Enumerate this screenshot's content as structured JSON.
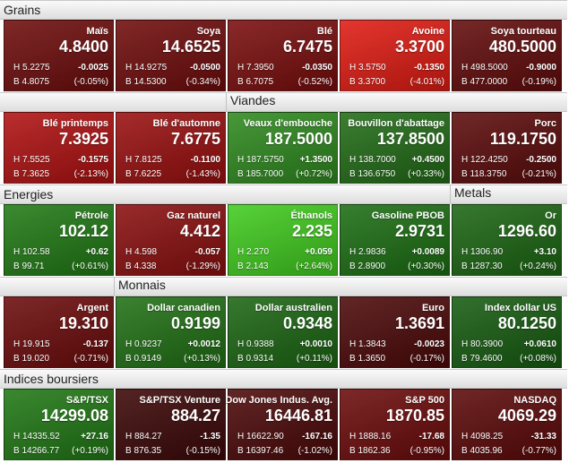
{
  "rows": [
    {
      "headers": [
        {
          "label": "Grains",
          "col": 0
        }
      ],
      "tiles": [
        {
          "name": "Maïs",
          "price": "4.8400",
          "high": "H 5.2275",
          "low": "B 4.8075",
          "change": "-0.0025",
          "pct": "(-0.05%)",
          "color": "#6e0b0b"
        },
        {
          "name": "Soya",
          "price": "14.6525",
          "high": "H 14.9275",
          "low": "B 14.5300",
          "change": "-0.0500",
          "pct": "(-0.34%)",
          "color": "#700b0b"
        },
        {
          "name": "Blé",
          "price": "6.7475",
          "high": "H 7.3950",
          "low": "B 6.7075",
          "change": "-0.0350",
          "pct": "(-0.52%)",
          "color": "#7a0c0c"
        },
        {
          "name": "Avoine",
          "price": "3.3700",
          "high": "H 3.5750",
          "low": "B 3.3700",
          "change": "-0.1350",
          "pct": "(-4.01%)",
          "color": "#e01b12"
        },
        {
          "name": "Soya tourteau",
          "price": "480.5000",
          "high": "H 498.5000",
          "low": "B 477.0000",
          "change": "-0.9000",
          "pct": "(-0.19%)",
          "color": "#620a0a"
        }
      ]
    },
    {
      "headers": [
        {
          "label": "Viandes",
          "col": 2
        }
      ],
      "tiles": [
        {
          "name": "Blé printemps",
          "price": "7.3925",
          "high": "H 7.5525",
          "low": "B 7.3625",
          "change": "-0.1575",
          "pct": "(-2.13%)",
          "color": "#b01010"
        },
        {
          "name": "Blé d'automne",
          "price": "7.6775",
          "high": "H 7.8125",
          "low": "B 7.6225",
          "change": "-0.1100",
          "pct": "(-1.43%)",
          "color": "#9a0e0e"
        },
        {
          "name": "Veaux d'embouche",
          "price": "187.5000",
          "high": "H 187.5750",
          "low": "B 185.7000",
          "change": "+1.3500",
          "pct": "(+0.72%)",
          "color": "#2e8a1e"
        },
        {
          "name": "Bouvillon d'abattage",
          "price": "137.8500",
          "high": "H 138.7000",
          "low": "B 136.6750",
          "change": "+0.4500",
          "pct": "(+0.33%)",
          "color": "#216c16"
        },
        {
          "name": "Porc",
          "price": "119.1750",
          "high": "H 122.4250",
          "low": "B 118.3750",
          "change": "-0.2500",
          "pct": "(-0.21%)",
          "color": "#5c0a0a"
        }
      ]
    },
    {
      "headers": [
        {
          "label": "Energies",
          "col": 0
        },
        {
          "label": "Metals",
          "col": 4
        }
      ],
      "tiles": [
        {
          "name": "Pétrole",
          "price": "102.12",
          "high": "H 102.58",
          "low": "B 99.71",
          "change": "+0.62",
          "pct": "(+0.61%)",
          "color": "#207a14"
        },
        {
          "name": "Gaz naturel",
          "price": "4.412",
          "high": "H 4.598",
          "low": "B 4.338",
          "change": "-0.057",
          "pct": "(-1.29%)",
          "color": "#8a0e0e"
        },
        {
          "name": "Éthanols",
          "price": "2.235",
          "high": "H 2.270",
          "low": "B 2.143",
          "change": "+0.059",
          "pct": "(+2.64%)",
          "color": "#40cc1e"
        },
        {
          "name": "Gasoline PBOB",
          "price": "2.9731",
          "high": "H 2.9836",
          "low": "B 2.8900",
          "change": "+0.0089",
          "pct": "(+0.30%)",
          "color": "#1b6e12"
        },
        {
          "name": "Or",
          "price": "1296.60",
          "high": "H 1306.90",
          "low": "B 1287.30",
          "change": "+3.10",
          "pct": "(+0.24%)",
          "color": "#1b6612"
        }
      ]
    },
    {
      "headers": [
        {
          "label": "Monnais",
          "col": 1
        }
      ],
      "tiles": [
        {
          "name": "Argent",
          "price": "19.310",
          "high": "H 19.915",
          "low": "B 19.020",
          "change": "-0.137",
          "pct": "(-0.71%)",
          "color": "#6c0a0a"
        },
        {
          "name": "Dollar canadien",
          "price": "0.9199",
          "high": "H 0.9237",
          "low": "B 0.9149",
          "change": "+0.0012",
          "pct": "(+0.13%)",
          "color": "#207014"
        },
        {
          "name": "Dollar australien",
          "price": "0.9348",
          "high": "H 0.9388",
          "low": "B 0.9314",
          "change": "+0.0010",
          "pct": "(+0.11%)",
          "color": "#1b6612"
        },
        {
          "name": "Euro",
          "price": "1.3691",
          "high": "H 1.3843",
          "low": "B 1.3650",
          "change": "-0.0023",
          "pct": "(-0.17%)",
          "color": "#4c0808"
        },
        {
          "name": "Index dollar US",
          "price": "80.1250",
          "high": "H 80.3900",
          "low": "B 79.4600",
          "change": "+0.0610",
          "pct": "(+0.08%)",
          "color": "#165c10"
        }
      ]
    },
    {
      "headers": [
        {
          "label": "Indices boursiers",
          "col": 0
        }
      ],
      "tiles": [
        {
          "name": "S&P/TSX",
          "price": "14299.08",
          "high": "H 14335.52",
          "low": "B 14266.77",
          "change": "+27.16",
          "pct": "(+0.19%)",
          "color": "#207814"
        },
        {
          "name": "S&P/TSX Venture",
          "price": "884.27",
          "high": "H 884.27",
          "low": "B 876.35",
          "change": "-1.35",
          "pct": "(-0.15%)",
          "color": "#3c0606"
        },
        {
          "name": "Dow Jones Indus. Avg.",
          "price": "16446.81",
          "high": "H 16622.90",
          "low": "B 16397.46",
          "change": "-167.16",
          "pct": "(-1.02%)",
          "color": "#4c0808"
        },
        {
          "name": "S&P 500",
          "price": "1870.85",
          "high": "H 1888.16",
          "low": "B 1862.36",
          "change": "-17.68",
          "pct": "(-0.95%)",
          "color": "#6c0a0a"
        },
        {
          "name": "NASDAQ",
          "price": "4069.29",
          "high": "H 4098.25",
          "low": "B 4035.96",
          "change": "-31.33",
          "pct": "(-0.77%)",
          "color": "#5c0808"
        }
      ]
    }
  ]
}
